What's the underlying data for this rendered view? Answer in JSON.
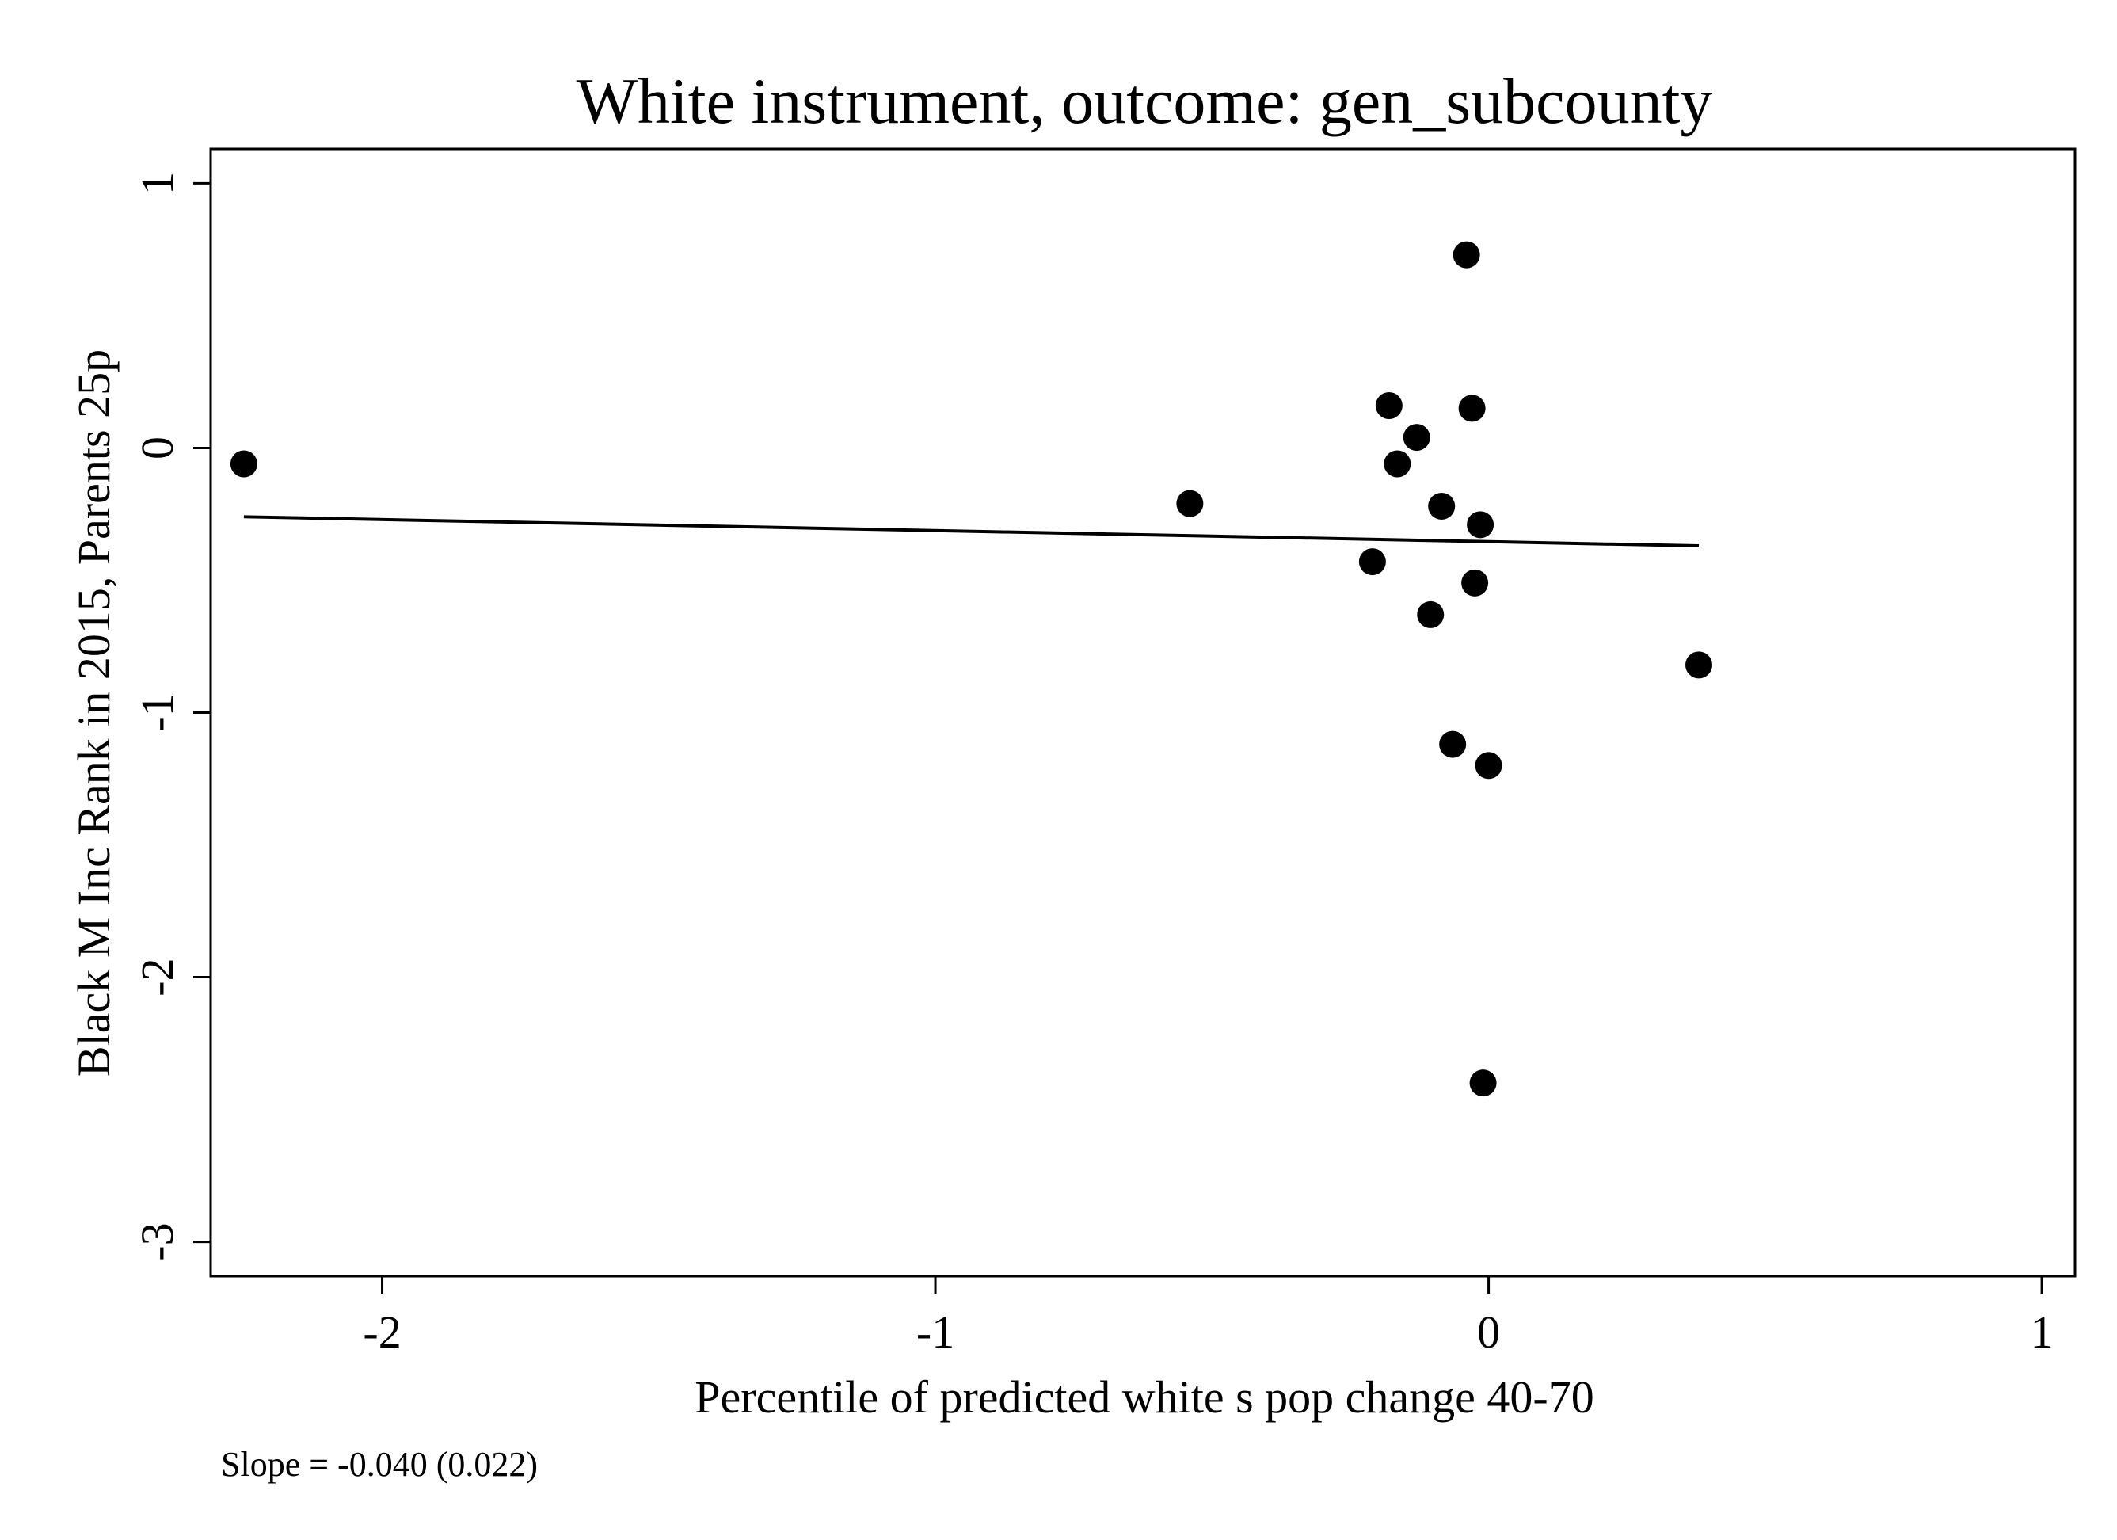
{
  "chart_data": {
    "type": "scatter",
    "title": "White instrument, outcome: gen_subcounty",
    "xlabel": "Percentile of predicted white s pop change 40-70",
    "ylabel": "Black M Inc Rank in 2015, Parents 25p",
    "note": "Slope = -0.040 (0.022)",
    "xlim": [
      -2.31,
      1.06
    ],
    "ylim": [
      -3.13,
      1.13
    ],
    "xticks": [
      -2,
      -1,
      0,
      1
    ],
    "yticks": [
      -3,
      -2,
      -1,
      0,
      1
    ],
    "xtick_labels": [
      "-2",
      "-1",
      "0",
      "1"
    ],
    "ytick_labels": [
      "-3",
      "-2",
      "-1",
      "0",
      "1"
    ],
    "grid": false,
    "legend": "none",
    "points": [
      {
        "x": -2.25,
        "y": -0.06
      },
      {
        "x": -0.54,
        "y": -0.21
      },
      {
        "x": -0.21,
        "y": -0.43
      },
      {
        "x": -0.18,
        "y": 0.16
      },
      {
        "x": -0.165,
        "y": -0.06
      },
      {
        "x": -0.13,
        "y": 0.04
      },
      {
        "x": -0.105,
        "y": -0.63
      },
      {
        "x": -0.085,
        "y": -0.22
      },
      {
        "x": -0.065,
        "y": -1.12
      },
      {
        "x": -0.04,
        "y": 0.73
      },
      {
        "x": -0.03,
        "y": 0.15
      },
      {
        "x": -0.025,
        "y": -0.51
      },
      {
        "x": -0.015,
        "y": -0.29
      },
      {
        "x": -0.01,
        "y": -2.4
      },
      {
        "x": 0.0,
        "y": -1.2
      },
      {
        "x": 0.38,
        "y": -0.82
      }
    ],
    "fit_line": {
      "x": [
        -2.25,
        0.38
      ],
      "y": [
        -0.26,
        -0.37
      ]
    }
  }
}
